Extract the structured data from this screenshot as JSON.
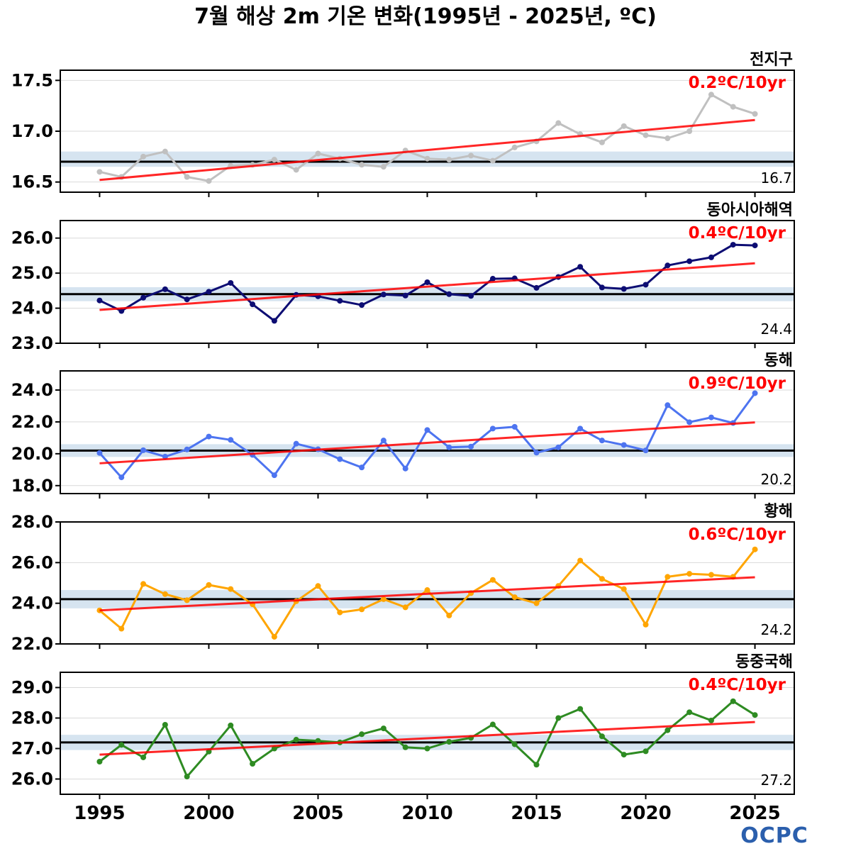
{
  "title": "7월 해상 2m 기온 변화(1995년 - 2025년, ºC)",
  "logo": "OCPC",
  "chart_data": [
    {
      "type": "line",
      "panel_label": "전지구",
      "trend_label": "0.2ºC/10yr",
      "climatology": 16.7,
      "climatology_label": "16.7",
      "band": [
        16.65,
        16.8
      ],
      "color": "#c0c0c0",
      "ylim": [
        16.4,
        17.6
      ],
      "yticks": [
        "16.5",
        "17.0",
        "17.5"
      ],
      "trend_line": [
        16.52,
        17.11
      ],
      "x": [
        1995,
        1996,
        1997,
        1998,
        1999,
        2000,
        2001,
        2002,
        2003,
        2004,
        2005,
        2006,
        2007,
        2008,
        2009,
        2010,
        2011,
        2012,
        2013,
        2014,
        2015,
        2016,
        2017,
        2018,
        2019,
        2020,
        2021,
        2022,
        2023,
        2024,
        2025
      ],
      "values": [
        16.6,
        16.55,
        16.75,
        16.8,
        16.55,
        16.51,
        16.66,
        16.67,
        16.72,
        16.62,
        16.78,
        16.73,
        16.67,
        16.65,
        16.81,
        16.73,
        16.72,
        16.76,
        16.71,
        16.84,
        16.9,
        17.08,
        16.97,
        16.89,
        17.05,
        16.96,
        16.93,
        17.0,
        17.36,
        17.24,
        17.17
      ]
    },
    {
      "type": "line",
      "panel_label": "동아시아해역",
      "trend_label": "0.4ºC/10yr",
      "climatology": 24.4,
      "climatology_label": "24.4",
      "band": [
        24.2,
        24.6
      ],
      "color": "#0d0d73",
      "ylim": [
        23.0,
        26.5
      ],
      "yticks": [
        "23.0",
        "24.0",
        "25.0",
        "26.0"
      ],
      "trend_line": [
        23.95,
        25.28
      ],
      "x": [
        1995,
        1996,
        1997,
        1998,
        1999,
        2000,
        2001,
        2002,
        2003,
        2004,
        2005,
        2006,
        2007,
        2008,
        2009,
        2010,
        2011,
        2012,
        2013,
        2014,
        2015,
        2016,
        2017,
        2018,
        2019,
        2020,
        2021,
        2022,
        2023,
        2024,
        2025
      ],
      "values": [
        24.22,
        23.92,
        24.3,
        24.54,
        24.25,
        24.47,
        24.72,
        24.11,
        23.64,
        24.38,
        24.34,
        24.21,
        24.09,
        24.39,
        24.36,
        24.74,
        24.4,
        24.35,
        24.84,
        24.85,
        24.58,
        24.89,
        25.18,
        24.59,
        24.55,
        24.67,
        25.22,
        25.34,
        25.45,
        25.81,
        25.79
      ]
    },
    {
      "type": "line",
      "panel_label": "동해",
      "trend_label": "0.9ºC/10yr",
      "climatology": 20.2,
      "climatology_label": "20.2",
      "band": [
        19.8,
        20.6
      ],
      "color": "#4d74f0",
      "ylim": [
        17.5,
        25.2
      ],
      "yticks": [
        "18.0",
        "20.0",
        "22.0",
        "24.0"
      ],
      "trend_line": [
        19.4,
        21.97
      ],
      "x": [
        1995,
        1996,
        1997,
        1998,
        1999,
        2000,
        2001,
        2002,
        2003,
        2004,
        2005,
        2006,
        2007,
        2008,
        2009,
        2010,
        2011,
        2012,
        2013,
        2014,
        2015,
        2016,
        2017,
        2018,
        2019,
        2020,
        2021,
        2022,
        2023,
        2024,
        2025
      ],
      "values": [
        20.05,
        18.52,
        20.22,
        19.82,
        20.27,
        21.08,
        20.87,
        19.93,
        18.65,
        20.63,
        20.28,
        19.66,
        19.14,
        20.83,
        19.07,
        21.49,
        20.4,
        20.45,
        21.58,
        21.69,
        20.07,
        20.4,
        21.58,
        20.83,
        20.55,
        20.21,
        23.05,
        21.98,
        22.28,
        21.93,
        23.8
      ]
    },
    {
      "type": "line",
      "panel_label": "황해",
      "trend_label": "0.6ºC/10yr",
      "climatology": 24.2,
      "climatology_label": "24.2",
      "band": [
        23.75,
        24.65
      ],
      "color": "#ffa500",
      "ylim": [
        22.0,
        28.0
      ],
      "yticks": [
        "22.0",
        "24.0",
        "26.0",
        "28.0"
      ],
      "trend_line": [
        23.65,
        25.28
      ],
      "x": [
        1995,
        1996,
        1997,
        1998,
        1999,
        2000,
        2001,
        2002,
        2003,
        2004,
        2005,
        2006,
        2007,
        2008,
        2009,
        2010,
        2011,
        2012,
        2013,
        2014,
        2015,
        2016,
        2017,
        2018,
        2019,
        2020,
        2021,
        2022,
        2023,
        2024,
        2025
      ],
      "values": [
        23.65,
        22.75,
        24.95,
        24.45,
        24.15,
        24.9,
        24.7,
        23.95,
        22.35,
        24.1,
        24.85,
        23.55,
        23.7,
        24.2,
        23.8,
        24.65,
        23.4,
        24.5,
        25.15,
        24.3,
        24.0,
        24.85,
        26.1,
        25.2,
        24.7,
        22.95,
        25.3,
        25.45,
        25.4,
        25.3,
        26.65
      ]
    },
    {
      "type": "line",
      "panel_label": "동중국해",
      "trend_label": "0.4ºC/10yr",
      "climatology": 27.2,
      "climatology_label": "27.2",
      "band": [
        26.95,
        27.45
      ],
      "color": "#2e8b22",
      "ylim": [
        25.5,
        29.5
      ],
      "yticks": [
        "26.0",
        "27.0",
        "28.0",
        "29.0"
      ],
      "trend_line": [
        26.8,
        27.87
      ],
      "x": [
        1995,
        1996,
        1997,
        1998,
        1999,
        2000,
        2001,
        2002,
        2003,
        2004,
        2005,
        2006,
        2007,
        2008,
        2009,
        2010,
        2011,
        2012,
        2013,
        2014,
        2015,
        2016,
        2017,
        2018,
        2019,
        2020,
        2021,
        2022,
        2023,
        2024,
        2025
      ],
      "values": [
        26.57,
        27.12,
        26.71,
        27.78,
        26.08,
        26.9,
        27.76,
        26.5,
        27.0,
        27.29,
        27.25,
        27.2,
        27.47,
        27.66,
        27.04,
        27.0,
        27.22,
        27.35,
        27.79,
        27.14,
        26.47,
        28.0,
        28.3,
        27.4,
        26.8,
        26.91,
        27.6,
        28.19,
        27.92,
        28.55,
        28.1
      ]
    }
  ],
  "x_ticks": [
    "1995",
    "2000",
    "2005",
    "2010",
    "2015",
    "2020",
    "2025"
  ],
  "colors": {
    "trend": "#ff0000",
    "climatology": "#000000",
    "band": "#d6e4f0",
    "grid": "#d9d9d9"
  }
}
